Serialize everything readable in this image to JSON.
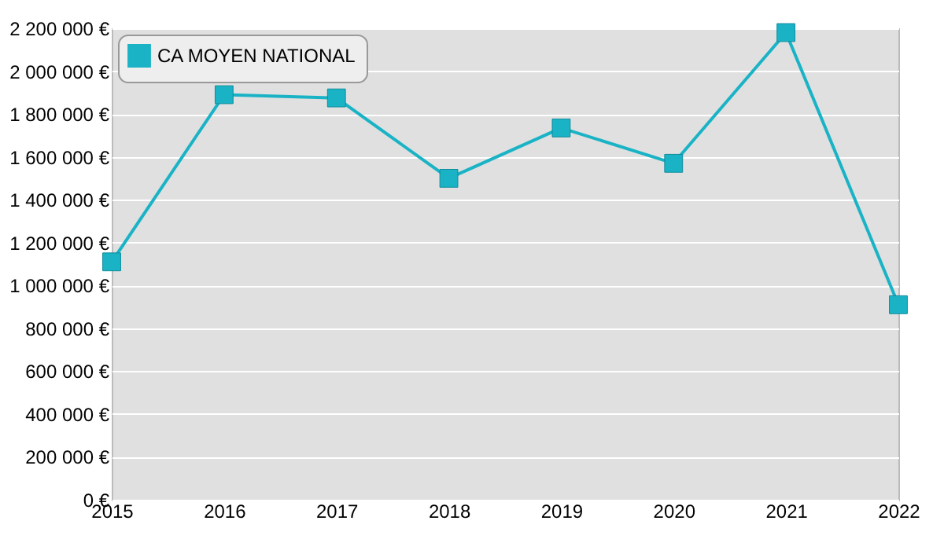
{
  "chart_data": {
    "type": "line",
    "x": [
      2015,
      2016,
      2017,
      2018,
      2019,
      2020,
      2021,
      2022
    ],
    "series": [
      {
        "name": "CA MOYEN NATIONAL",
        "color": "#1ab3c6",
        "values": [
          1110000,
          1890000,
          1875000,
          1500000,
          1735000,
          1570000,
          2180000,
          910000
        ]
      }
    ],
    "xlim": [
      2015,
      2022
    ],
    "xticks": [
      2015,
      2016,
      2017,
      2018,
      2019,
      2020,
      2021,
      2022
    ],
    "ylim": [
      0,
      2200000
    ],
    "yticks": [
      {
        "value": 0,
        "label": "0 €"
      },
      {
        "value": 200000,
        "label": "200 000 €"
      },
      {
        "value": 400000,
        "label": "400 000 €"
      },
      {
        "value": 600000,
        "label": "600 000 €"
      },
      {
        "value": 800000,
        "label": "800 000 €"
      },
      {
        "value": 1000000,
        "label": "1 000 000 €"
      },
      {
        "value": 1200000,
        "label": "1 200 000 €"
      },
      {
        "value": 1400000,
        "label": "1 400 000 €"
      },
      {
        "value": 1600000,
        "label": "1 600 000 €"
      },
      {
        "value": 1800000,
        "label": "1 800 000 €"
      },
      {
        "value": 2000000,
        "label": "2 000 000 €"
      },
      {
        "value": 2200000,
        "label": "2 200 000 €"
      }
    ],
    "grid": "y",
    "legend": "top left",
    "marker": "square",
    "line_style": "solid"
  }
}
